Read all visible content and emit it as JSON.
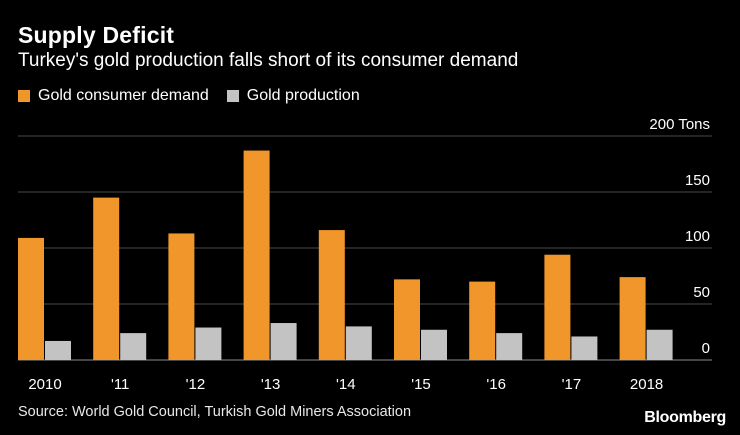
{
  "title": "Supply Deficit",
  "subtitle": "Turkey's gold production falls short of its consumer demand",
  "source": "Source: World Gold Council, Turkish Gold Miners Association",
  "brand": "Bloomberg",
  "colors": {
    "demand": "#f0962a",
    "production": "#c3c3c3",
    "grid": "#4a4a4a",
    "background": "#000000"
  },
  "chart_data": {
    "type": "bar",
    "title": "Supply Deficit",
    "categories": [
      "2010",
      "'11",
      "'12",
      "'13",
      "'14",
      "'15",
      "'16",
      "'17",
      "2018"
    ],
    "series": [
      {
        "name": "Gold consumer demand",
        "values": [
          109,
          145,
          113,
          187,
          116,
          72,
          70,
          94,
          74
        ]
      },
      {
        "name": "Gold production",
        "values": [
          17,
          24,
          29,
          33,
          30,
          27,
          24,
          21,
          27
        ]
      }
    ],
    "ylim": [
      0,
      200
    ],
    "yticks": [
      0,
      50,
      100,
      150,
      200
    ],
    "ytick_labels": [
      "0",
      "50",
      "100",
      "150",
      "200 Tons"
    ],
    "ylabel": "Tons",
    "xlabel": "",
    "grid": true,
    "legend": "top-left"
  }
}
